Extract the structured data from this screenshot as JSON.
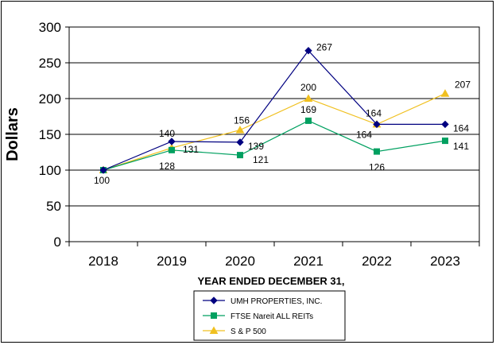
{
  "chart_data": {
    "type": "line",
    "categories": [
      "2018",
      "2019",
      "2020",
      "2021",
      "2022",
      "2023"
    ],
    "xlabel": "YEAR ENDED DECEMBER 31,",
    "ylabel": "Dollars",
    "ylim": [
      0,
      300
    ],
    "yticks": [
      "0",
      "50",
      "100",
      "150",
      "200",
      "250",
      "300"
    ],
    "grid": "horizontal",
    "legend_position": "bottom",
    "series": [
      {
        "name": "UMH PROPERTIES, INC.",
        "values": [
          100,
          140,
          139,
          267,
          164,
          164
        ],
        "labels": [
          "",
          "140",
          "139",
          "267",
          "164",
          "164"
        ],
        "color": "#000080",
        "marker": "diamond"
      },
      {
        "name": "FTSE Nareit ALL REITs",
        "values": [
          100,
          128,
          121,
          169,
          126,
          141
        ],
        "labels": [
          "100",
          "128",
          "121",
          "169",
          "126",
          "141"
        ],
        "color": "#00A060",
        "marker": "square"
      },
      {
        "name": "S & P 500",
        "values": [
          100,
          131,
          156,
          200,
          164,
          207
        ],
        "labels": [
          "",
          "131",
          "156",
          "200",
          "164",
          "207"
        ],
        "color": "#F0C020",
        "marker": "triangle"
      }
    ]
  }
}
